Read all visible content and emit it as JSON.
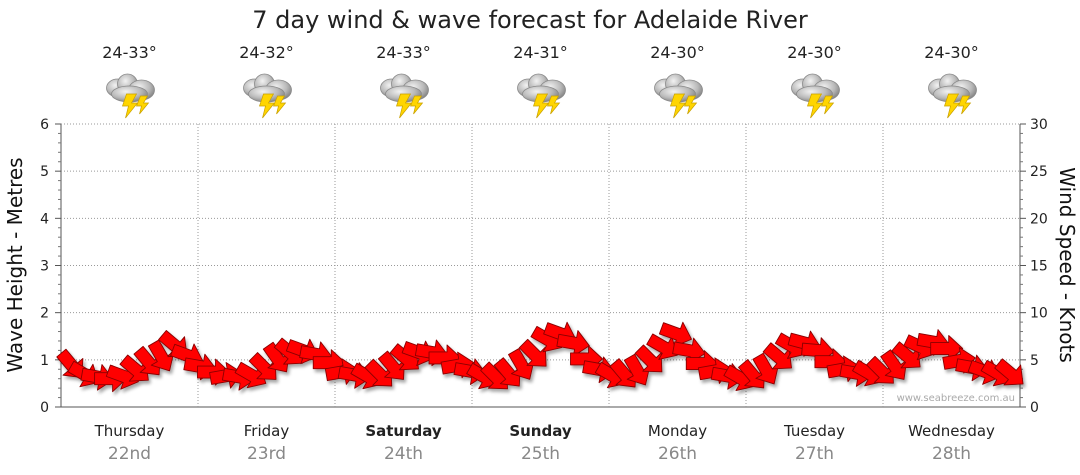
{
  "chart_data": {
    "type": "line",
    "title": "7 day wind & wave forecast for Adelaide River",
    "ylabel_left": "Wave Height - Metres",
    "ylabel_right": "Wind Speed - Knots",
    "ylim_left": [
      0,
      6
    ],
    "ylim_right": [
      0,
      30
    ],
    "left_ticks": [
      "0",
      "1",
      "2",
      "3",
      "4",
      "5",
      "6"
    ],
    "right_ticks": [
      "0",
      "5",
      "10",
      "15",
      "20",
      "25",
      "30"
    ],
    "grid": true,
    "days": [
      {
        "name": "Thursday",
        "date": "22nd",
        "temp": "24-33°",
        "weather_icon": "thunderstorm-icon",
        "bold": false
      },
      {
        "name": "Friday",
        "date": "23rd",
        "temp": "24-32°",
        "weather_icon": "thunderstorm-icon",
        "bold": false
      },
      {
        "name": "Saturday",
        "date": "24th",
        "temp": "24-33°",
        "weather_icon": "thunderstorm-icon",
        "bold": true
      },
      {
        "name": "Sunday",
        "date": "25th",
        "temp": "24-31°",
        "weather_icon": "thunderstorm-icon",
        "bold": true
      },
      {
        "name": "Monday",
        "date": "26th",
        "temp": "24-30°",
        "weather_icon": "thunderstorm-icon",
        "bold": false
      },
      {
        "name": "Tuesday",
        "date": "27th",
        "temp": "24-30°",
        "weather_icon": "thunderstorm-icon",
        "bold": false
      },
      {
        "name": "Wednesday",
        "date": "28th",
        "temp": "24-30°",
        "weather_icon": "thunderstorm-icon",
        "bold": false
      }
    ],
    "series": [
      {
        "axis": "right",
        "mark": "wind-arrow",
        "values": [
          4.5,
          3.5,
          3.2,
          3.0,
          3.3,
          4.0,
          4.8,
          5.4,
          6.6,
          5.5,
          4.3,
          3.7,
          3.3,
          3.2,
          3.4,
          4.2,
          5.2,
          5.8,
          6.0,
          5.6,
          4.7,
          3.7,
          3.4,
          3.3,
          3.5,
          4.3,
          5.2,
          5.8,
          5.8,
          5.2,
          4.4,
          3.8,
          3.3,
          3.2,
          3.6,
          4.5,
          5.6,
          7.2,
          7.8,
          6.8,
          5.1,
          4.0,
          3.4,
          3.5,
          3.9,
          5.0,
          6.4,
          7.8,
          6.0,
          4.6,
          3.8,
          3.3,
          3.1,
          3.4,
          4.0,
          5.3,
          6.5,
          6.8,
          6.0,
          4.8,
          4.0,
          3.6,
          3.6,
          3.8,
          4.4,
          5.4,
          6.4,
          6.9,
          6.2,
          4.9,
          4.2,
          3.8,
          3.6,
          3.6
        ]
      }
    ],
    "wind_directions_deg": [
      50,
      30,
      10,
      0,
      20,
      40,
      50,
      60,
      40,
      20,
      10,
      0,
      350,
      10,
      30,
      45,
      55,
      40,
      20,
      10,
      0,
      350,
      10,
      30,
      45,
      50,
      40,
      20,
      10,
      0,
      350,
      10,
      30,
      45,
      50,
      60,
      45,
      30,
      20,
      10,
      0,
      10,
      30,
      50,
      60,
      45,
      30,
      20,
      10,
      0,
      350,
      10,
      30,
      50,
      60,
      40,
      30,
      15,
      5,
      0,
      350,
      10,
      30,
      45,
      55,
      40,
      25,
      10,
      0,
      350,
      10,
      20,
      30,
      40
    ],
    "watermark": "www.seabreeze.com.au"
  }
}
